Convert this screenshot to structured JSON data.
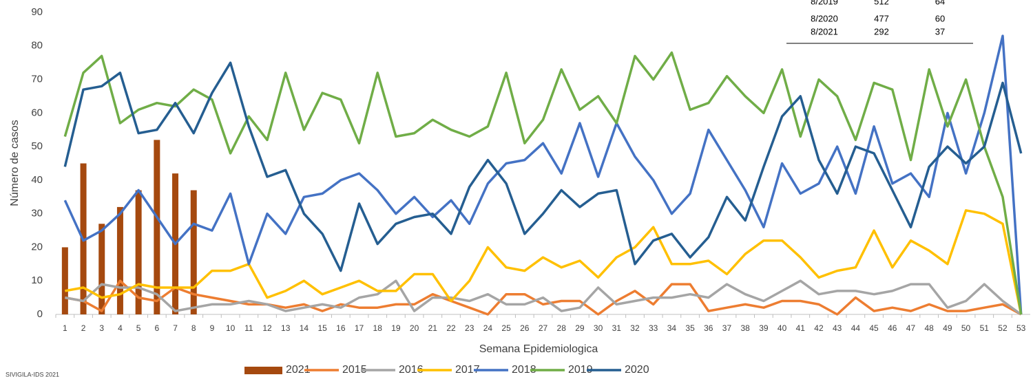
{
  "chart_data": {
    "type": "combo",
    "x_label": "Semana Epidemiologica",
    "y_label": "Número de casos",
    "categories": [
      "1",
      "2",
      "3",
      "4",
      "5",
      "6",
      "7",
      "8",
      "9",
      "10",
      "11",
      "12",
      "13",
      "14",
      "15",
      "16",
      "17",
      "18",
      "19",
      "20",
      "21",
      "22",
      "23",
      "24",
      "25",
      "26",
      "27",
      "28",
      "29",
      "30",
      "31",
      "32",
      "33",
      "34",
      "35",
      "36",
      "37",
      "38",
      "39",
      "40",
      "41",
      "42",
      "43",
      "44",
      "45",
      "46",
      "47",
      "48",
      "49",
      "50",
      "51",
      "52",
      "53"
    ],
    "ylim": [
      0,
      90
    ],
    "yticks": [
      0,
      10,
      20,
      30,
      40,
      50,
      60,
      70,
      80,
      90
    ],
    "grid": false,
    "legend": "bottom",
    "series": [
      {
        "name": "2021",
        "type": "bar",
        "color": "#a5490f",
        "values": [
          20,
          45,
          27,
          32,
          37,
          52,
          42,
          37,
          null,
          null,
          null,
          null,
          null,
          null,
          null,
          null,
          null,
          null,
          null,
          null,
          null,
          null,
          null,
          null,
          null,
          null,
          null,
          null,
          null,
          null,
          null,
          null,
          null,
          null,
          null,
          null,
          null,
          null,
          null,
          null,
          null,
          null,
          null,
          null,
          null,
          null,
          null,
          null,
          null,
          null,
          null,
          null,
          null
        ]
      },
      {
        "name": "2015",
        "type": "line",
        "color": "#ed7d31",
        "values": [
          5,
          4,
          1,
          10,
          5,
          4,
          8,
          6,
          5,
          4,
          3,
          3,
          2,
          3,
          1,
          3,
          2,
          2,
          3,
          3,
          6,
          4,
          2,
          0,
          6,
          6,
          3,
          4,
          4,
          0,
          4,
          7,
          3,
          9,
          9,
          1,
          2,
          3,
          2,
          4,
          4,
          3,
          0,
          5,
          1,
          2,
          1,
          3,
          1,
          1,
          2,
          3,
          0
        ]
      },
      {
        "name": "2016",
        "type": "line",
        "color": "#a5a5a5",
        "values": [
          5,
          4,
          9,
          8,
          8,
          6,
          1,
          2,
          3,
          3,
          4,
          3,
          1,
          2,
          3,
          2,
          5,
          6,
          10,
          1,
          5,
          5,
          4,
          6,
          3,
          3,
          5,
          1,
          2,
          8,
          3,
          4,
          5,
          5,
          6,
          5,
          9,
          6,
          4,
          7,
          10,
          6,
          7,
          7,
          6,
          7,
          9,
          9,
          2,
          4,
          9,
          4,
          0
        ]
      },
      {
        "name": "2017",
        "type": "line",
        "color": "#ffc000",
        "values": [
          7,
          8,
          5,
          6,
          9,
          8,
          8,
          8,
          13,
          13,
          15,
          5,
          7,
          10,
          6,
          8,
          10,
          7,
          7,
          12,
          12,
          4,
          10,
          20,
          14,
          13,
          17,
          14,
          16,
          11,
          17,
          20,
          26,
          15,
          15,
          16,
          12,
          18,
          22,
          22,
          17,
          11,
          13,
          14,
          25,
          14,
          22,
          19,
          15,
          31,
          30,
          27,
          0
        ]
      },
      {
        "name": "2018",
        "type": "line",
        "color": "#4472c4",
        "values": [
          34,
          22,
          25,
          30,
          37,
          29,
          21,
          27,
          25,
          36,
          15,
          30,
          24,
          35,
          36,
          40,
          42,
          37,
          30,
          35,
          29,
          34,
          27,
          39,
          45,
          46,
          51,
          42,
          57,
          41,
          57,
          47,
          40,
          30,
          36,
          55,
          46,
          37,
          26,
          45,
          36,
          39,
          50,
          36,
          56,
          39,
          42,
          35,
          60,
          42,
          60,
          83,
          0
        ]
      },
      {
        "name": "2019",
        "type": "line",
        "color": "#70ad47",
        "values": [
          53,
          72,
          77,
          57,
          61,
          63,
          62,
          67,
          64,
          48,
          59,
          52,
          72,
          55,
          66,
          64,
          51,
          72,
          53,
          54,
          58,
          55,
          53,
          56,
          72,
          51,
          58,
          73,
          61,
          65,
          57,
          77,
          70,
          78,
          61,
          63,
          71,
          65,
          60,
          73,
          53,
          70,
          65,
          52,
          69,
          67,
          46,
          73,
          56,
          70,
          50,
          35,
          0
        ]
      },
      {
        "name": "2020",
        "type": "line",
        "color": "#255e91",
        "values": [
          44,
          67,
          68,
          72,
          54,
          55,
          63,
          54,
          66,
          75,
          56,
          41,
          43,
          30,
          24,
          13,
          33,
          21,
          27,
          29,
          30,
          24,
          38,
          46,
          39,
          24,
          30,
          37,
          32,
          36,
          37,
          15,
          22,
          24,
          17,
          23,
          35,
          28,
          44,
          59,
          65,
          46,
          36,
          50,
          48,
          37,
          26,
          44,
          50,
          45,
          50,
          69,
          48
        ]
      }
    ],
    "source": "SIVIGILA-IDS 2021"
  },
  "table": {
    "rows": [
      [
        "8/2019",
        "512",
        "64"
      ],
      [
        "8/2020",
        "477",
        "60"
      ],
      [
        "8/2021",
        "292",
        "37"
      ]
    ]
  }
}
